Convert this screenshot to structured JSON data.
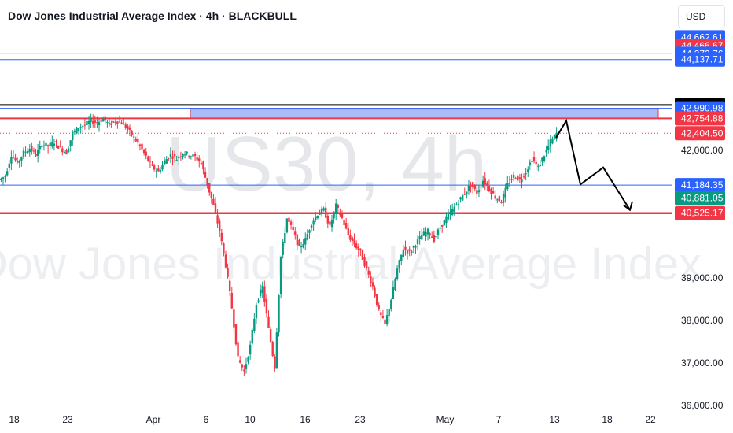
{
  "header": {
    "title": "Dow Jones Industrial Average Index · 4h · BLACKBULL",
    "currency": "USD"
  },
  "watermark": {
    "symbol": "US30, 4h",
    "name": "Dow Jones Industrial Average Index"
  },
  "colors": {
    "up": "#089981",
    "down": "#f23645",
    "blue": "#2962ff",
    "green": "#089981",
    "red": "#f23645",
    "black": "#000000",
    "zone_fill": "#8fa4f5"
  },
  "chart_data": {
    "type": "candlestick",
    "ylim": [
      36000,
      44800
    ],
    "x_ticks": [
      "18",
      "23",
      "Apr",
      "6",
      "10",
      "16",
      "23",
      "May",
      "7",
      "13",
      "18",
      "22"
    ],
    "y_ticks": [
      "42,000.00",
      "39,000.00",
      "38,000.00",
      "37,000.00",
      "36,000.00"
    ],
    "price_lines": [
      {
        "value": 44662.61,
        "label": "44,662.61",
        "color": "#2962ff"
      },
      {
        "value": 44466.67,
        "label": "44,466.67",
        "color": "#f23645"
      },
      {
        "value": 44273.76,
        "label": "44,273.76",
        "color": "#2962ff"
      },
      {
        "value": 44137.71,
        "label": "44,137.71",
        "color": "#2962ff"
      },
      {
        "value": 43070.09,
        "label": "43,070.09",
        "color": "#000000"
      },
      {
        "value": 42990.98,
        "label": "42,990.98",
        "color": "#2962ff"
      },
      {
        "value": 42754.88,
        "label": "42,754.88",
        "color": "#f23645"
      },
      {
        "value": 42404.5,
        "label": "42,404.50",
        "color": "#f23645"
      },
      {
        "value": 41184.35,
        "label": "41,184.35",
        "color": "#2962ff"
      },
      {
        "value": 40881.05,
        "label": "40,881.05",
        "color": "#089981"
      },
      {
        "value": 40525.17,
        "label": "40,525.17",
        "color": "#f23645"
      }
    ],
    "zone": {
      "top": 42990.98,
      "bottom": 42754.88
    },
    "projection_path": [
      42300,
      42700,
      41200,
      41600,
      40600
    ],
    "price_series": [
      41400,
      41900,
      41700,
      41950,
      42050,
      41900,
      42150,
      42100,
      42200,
      42050,
      41950,
      42400,
      42550,
      42600,
      42700,
      42650,
      42750,
      42600,
      42700,
      42650,
      42500,
      42300,
      42100,
      41850,
      41600,
      41500,
      41750,
      41900,
      41800,
      41950,
      41900,
      41850,
      41700,
      41200,
      40700,
      40100,
      39300,
      38300,
      37100,
      36800,
      37400,
      38400,
      38800,
      37800,
      36900,
      39500,
      40400,
      40100,
      39700,
      39900,
      40300,
      40500,
      40600,
      40200,
      40700,
      40400,
      40000,
      39800,
      39600,
      39200,
      38800,
      38200,
      37900,
      38500,
      39200,
      39700,
      39600,
      39800,
      40000,
      40100,
      39900,
      40200,
      40400,
      40600,
      40800,
      41000,
      41200,
      41000,
      41300,
      41100,
      40900,
      40800,
      41200,
      41400,
      41300,
      41500,
      41800,
      41600,
      41900,
      42200,
      42400
    ]
  }
}
